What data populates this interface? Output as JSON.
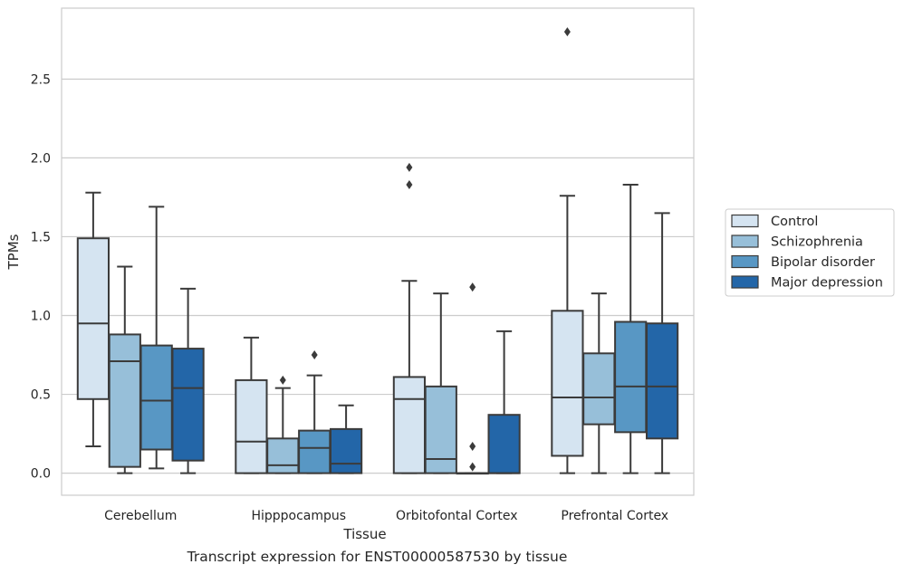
{
  "caption": "Transcript expression for ENST00000587530 by tissue",
  "chart_data": {
    "type": "box",
    "xlabel": "Tissue",
    "ylabel": "TPMs",
    "ylim": [
      -0.14,
      2.95
    ],
    "yticks": [
      "0.0",
      "0.5",
      "1.0",
      "1.5",
      "2.0",
      "2.5"
    ],
    "grid": "horizontal",
    "legend_position": "right",
    "categories": [
      "Cerebellum",
      "Hipppocampus",
      "Orbitofontal Cortex",
      "Prefrontal Cortex"
    ],
    "series": [
      {
        "name": "Control",
        "color": "#d5e4f1",
        "boxes": [
          {
            "q1": 0.47,
            "median": 0.95,
            "q3": 1.49,
            "whisker_low": 0.17,
            "whisker_high": 1.78,
            "outliers": []
          },
          {
            "q1": 0.0,
            "median": 0.2,
            "q3": 0.59,
            "whisker_low": 0.0,
            "whisker_high": 0.86,
            "outliers": []
          },
          {
            "q1": 0.0,
            "median": 0.47,
            "q3": 0.61,
            "whisker_low": 0.0,
            "whisker_high": 1.22,
            "outliers": [
              1.83,
              1.94
            ]
          },
          {
            "q1": 0.11,
            "median": 0.48,
            "q3": 1.03,
            "whisker_low": 0.0,
            "whisker_high": 1.76,
            "outliers": [
              2.8
            ]
          }
        ]
      },
      {
        "name": "Schizophrenia",
        "color": "#97bfd9",
        "boxes": [
          {
            "q1": 0.04,
            "median": 0.71,
            "q3": 0.88,
            "whisker_low": 0.0,
            "whisker_high": 1.31,
            "outliers": []
          },
          {
            "q1": 0.0,
            "median": 0.05,
            "q3": 0.22,
            "whisker_low": 0.0,
            "whisker_high": 0.54,
            "outliers": [
              0.59
            ]
          },
          {
            "q1": 0.0,
            "median": 0.09,
            "q3": 0.55,
            "whisker_low": 0.0,
            "whisker_high": 1.14,
            "outliers": []
          },
          {
            "q1": 0.31,
            "median": 0.48,
            "q3": 0.76,
            "whisker_low": 0.0,
            "whisker_high": 1.14,
            "outliers": []
          }
        ]
      },
      {
        "name": "Bipolar disorder",
        "color": "#5897c4",
        "boxes": [
          {
            "q1": 0.15,
            "median": 0.46,
            "q3": 0.81,
            "whisker_low": 0.03,
            "whisker_high": 1.69,
            "outliers": []
          },
          {
            "q1": 0.0,
            "median": 0.16,
            "q3": 0.27,
            "whisker_low": 0.0,
            "whisker_high": 0.62,
            "outliers": [
              0.75
            ]
          },
          {
            "q1": 0.0,
            "median": 0.0,
            "q3": 0.0,
            "whisker_low": 0.0,
            "whisker_high": 0.0,
            "outliers": [
              0.04,
              0.17,
              1.18
            ]
          },
          {
            "q1": 0.26,
            "median": 0.55,
            "q3": 0.96,
            "whisker_low": 0.0,
            "whisker_high": 1.83,
            "outliers": []
          }
        ]
      },
      {
        "name": "Major depression",
        "color": "#2366a8",
        "boxes": [
          {
            "q1": 0.08,
            "median": 0.54,
            "q3": 0.79,
            "whisker_low": 0.0,
            "whisker_high": 1.17,
            "outliers": []
          },
          {
            "q1": 0.0,
            "median": 0.06,
            "q3": 0.28,
            "whisker_low": 0.0,
            "whisker_high": 0.43,
            "outliers": []
          },
          {
            "q1": 0.0,
            "median": 0.0,
            "q3": 0.37,
            "whisker_low": 0.0,
            "whisker_high": 0.9,
            "outliers": []
          },
          {
            "q1": 0.22,
            "median": 0.55,
            "q3": 0.95,
            "whisker_low": 0.0,
            "whisker_high": 1.65,
            "outliers": []
          }
        ]
      }
    ]
  }
}
